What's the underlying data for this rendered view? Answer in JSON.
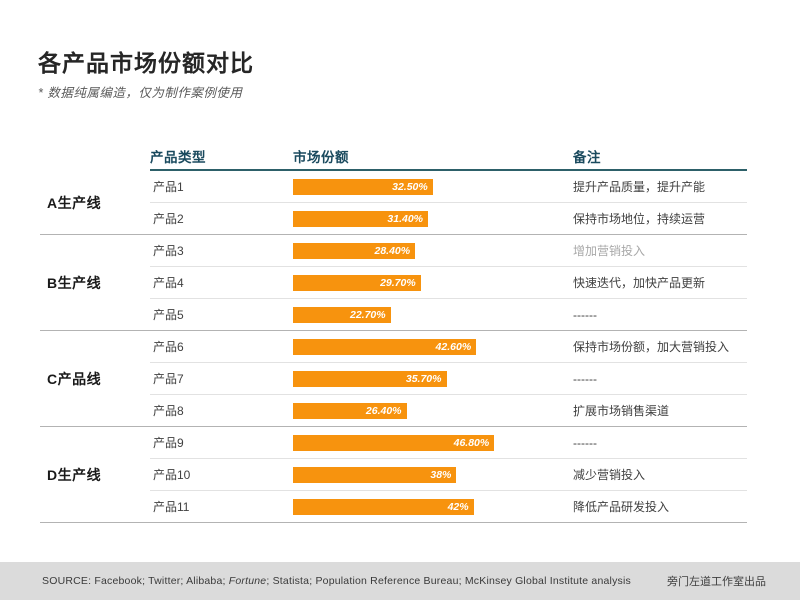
{
  "title": "各产品市场份额对比",
  "subtitle": "* 数据纯属编造，仅为制作案例使用",
  "table": {
    "headers": {
      "product_type": "产品类型",
      "market_share": "市场份额",
      "remark": "备注"
    },
    "groups": [
      {
        "label": "A生产线",
        "rows": [
          {
            "product": "产品1",
            "value": 32.5,
            "value_label": "32.50%",
            "remark": "提升产品质量，提升产能",
            "remark_muted": false
          },
          {
            "product": "产品2",
            "value": 31.4,
            "value_label": "31.40%",
            "remark": "保持市场地位，持续运营",
            "remark_muted": false
          }
        ]
      },
      {
        "label": "B生产线",
        "rows": [
          {
            "product": "产品3",
            "value": 28.4,
            "value_label": "28.40%",
            "remark": "增加营销投入",
            "remark_muted": true
          },
          {
            "product": "产品4",
            "value": 29.7,
            "value_label": "29.70%",
            "remark": "快速迭代，加快产品更新",
            "remark_muted": false
          },
          {
            "product": "产品5",
            "value": 22.7,
            "value_label": "22.70%",
            "remark": "------",
            "remark_muted": false
          }
        ]
      },
      {
        "label": "C产品线",
        "rows": [
          {
            "product": "产品6",
            "value": 42.6,
            "value_label": "42.60%",
            "remark": "保持市场份额，加大营销投入",
            "remark_muted": false
          },
          {
            "product": "产品7",
            "value": 35.7,
            "value_label": "35.70%",
            "remark": "------",
            "remark_muted": false
          },
          {
            "product": "产品8",
            "value": 26.4,
            "value_label": "26.40%",
            "remark": "扩展市场销售渠道",
            "remark_muted": false
          }
        ]
      },
      {
        "label": "D生产线",
        "rows": [
          {
            "product": "产品9",
            "value": 46.8,
            "value_label": "46.80%",
            "remark": "------",
            "remark_muted": false
          },
          {
            "product": "产品10",
            "value": 38,
            "value_label": "38%",
            "remark": "减少营销投入",
            "remark_muted": false
          },
          {
            "product": "产品11",
            "value": 42,
            "value_label": "42%",
            "remark": "降低产品研发投入",
            "remark_muted": false
          }
        ]
      }
    ]
  },
  "chart_data": {
    "type": "bar",
    "orientation": "horizontal",
    "title": "各产品市场份额对比",
    "unit": "%",
    "categories": [
      "产品1",
      "产品2",
      "产品3",
      "产品4",
      "产品5",
      "产品6",
      "产品7",
      "产品8",
      "产品9",
      "产品10",
      "产品11"
    ],
    "values": [
      32.5,
      31.4,
      28.4,
      29.7,
      22.7,
      42.6,
      35.7,
      26.4,
      46.8,
      38,
      42
    ],
    "category_groups": [
      "A生产线",
      "A生产线",
      "B生产线",
      "B生产线",
      "B生产线",
      "C产品线",
      "C产品线",
      "C产品线",
      "D生产线",
      "D生产线",
      "D生产线"
    ],
    "data_labels": [
      "32.50%",
      "31.40%",
      "28.40%",
      "29.70%",
      "22.70%",
      "42.60%",
      "35.70%",
      "26.40%",
      "46.80%",
      "38%",
      "42%"
    ],
    "bar_color": "#F7930E",
    "xlim": [
      0,
      50
    ],
    "grid": false,
    "legend": false
  },
  "footer": {
    "source_prefix": "SOURCE: Facebook; Twitter; Alibaba; ",
    "source_italic": "Fortune",
    "source_suffix": "; Statista; Population Reference Bureau; McKinsey Global Institute analysis",
    "credit": "旁门左道工作室出品"
  },
  "colors": {
    "bar_orange": "#F7930E",
    "header_teal": "#1A4A5E",
    "header_line": "#2D6069",
    "group_line": "#B3B3B3",
    "row_line": "#E2E2E2",
    "footer_bg": "#DBDBDB",
    "muted_text": "#A8A8A8"
  }
}
